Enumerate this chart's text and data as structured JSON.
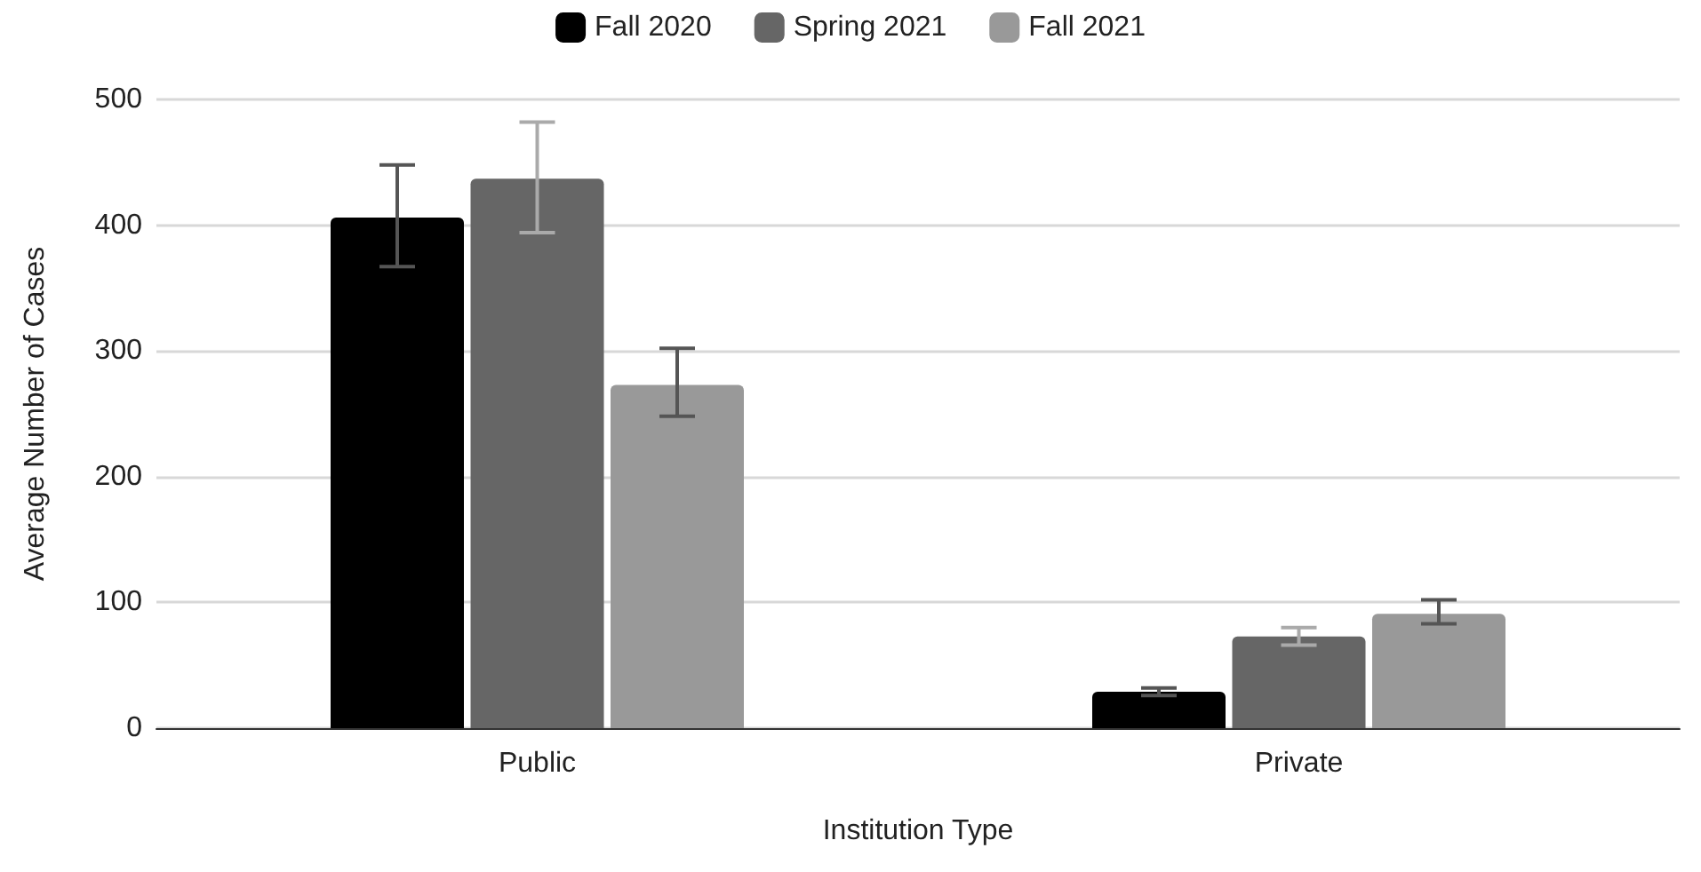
{
  "chart_data": {
    "type": "bar",
    "xlabel": "Institution Type",
    "ylabel": "Average Number of Cases",
    "categories": [
      "Public",
      "Private"
    ],
    "series": [
      {
        "name": "Fall 2020",
        "color": "#000000",
        "values": [
          406,
          29
        ],
        "errors": [
          [
            367,
            448
          ],
          [
            26,
            32
          ]
        ]
      },
      {
        "name": "Spring 2021",
        "color": "#666666",
        "values": [
          437,
          73
        ],
        "errors": [
          [
            394,
            482
          ],
          [
            66,
            80
          ]
        ]
      },
      {
        "name": "Fall 2021",
        "color": "#999999",
        "values": [
          273,
          91
        ],
        "errors": [
          [
            248,
            302
          ],
          [
            83,
            102
          ]
        ]
      }
    ],
    "ylim": [
      0,
      500
    ],
    "yticks": [
      0,
      100,
      200,
      300,
      400,
      500
    ],
    "grid": "y",
    "legend": "top"
  }
}
